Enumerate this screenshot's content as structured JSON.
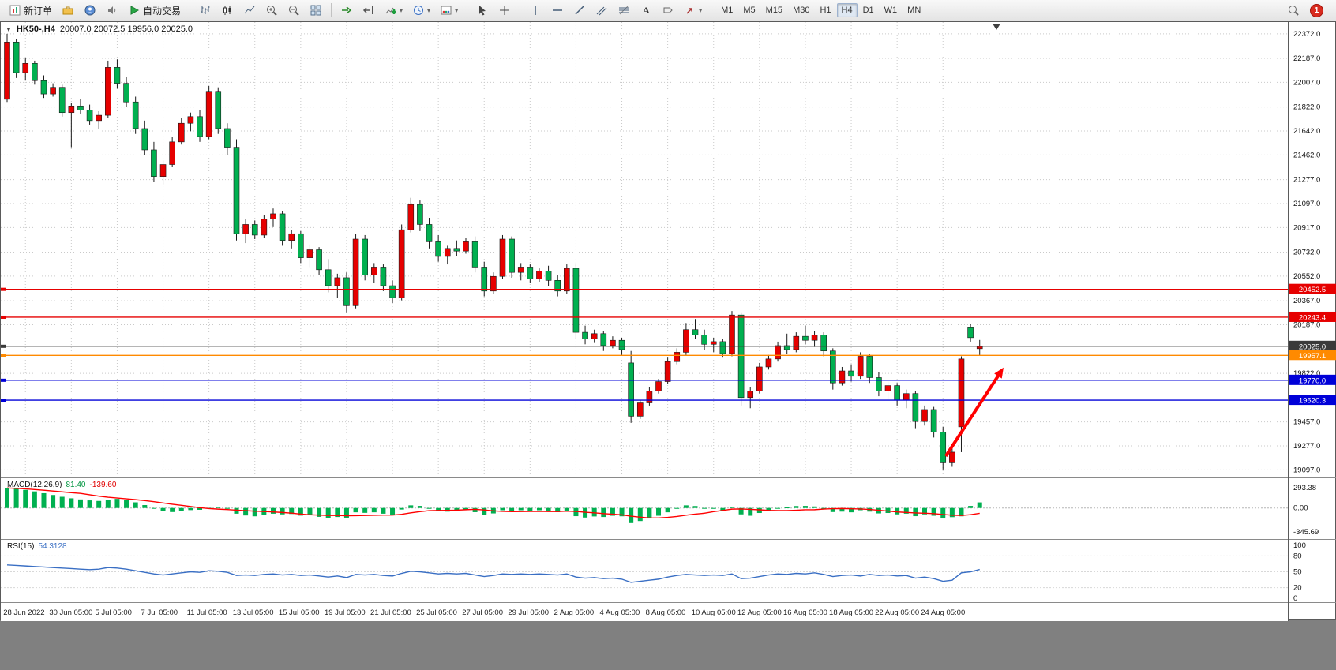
{
  "toolbar": {
    "new_order_label": "新订单",
    "autotrading_label": "自动交易",
    "timeframes": [
      "M1",
      "M5",
      "M15",
      "M30",
      "H1",
      "H4",
      "D1",
      "W1",
      "MN"
    ],
    "active_timeframe": "H4",
    "notification_count": "1"
  },
  "chart": {
    "symbol_period": "HK50-,H4",
    "ohlc_text": "20007.0 20072.5 19956.0 20025.0",
    "price_axis": [
      "22372.0",
      "22187.0",
      "22007.0",
      "21822.0",
      "21642.0",
      "21462.0",
      "21277.0",
      "21097.0",
      "20917.0",
      "20732.0",
      "20552.0",
      "20367.0",
      "20187.0",
      "19822.0",
      "19457.0",
      "19277.0",
      "19097.0"
    ],
    "levels": [
      {
        "label": "20452.5",
        "price": 20452.5,
        "color": "#e60000",
        "width": 1.4
      },
      {
        "label": "20243.4",
        "price": 20243.4,
        "color": "#e60000",
        "width": 1.4
      },
      {
        "label": "20025.0",
        "price": 20025.0,
        "color": "#3a3a3a",
        "width": 1
      },
      {
        "label": "19957.1",
        "price": 19957.1,
        "color": "#ff8a00",
        "width": 1.4
      },
      {
        "label": "19770.0",
        "price": 19770.0,
        "color": "#0000d8",
        "width": 1.4
      },
      {
        "label": "19620.3",
        "price": 19620.3,
        "color": "#0000d8",
        "width": 1.4
      }
    ],
    "time_axis": [
      "28 Jun 2022",
      "30 Jun 05:00",
      "5 Jul 05:00",
      "7 Jul 05:00",
      "11 Jul 05:00",
      "13 Jul 05:00",
      "15 Jul 05:00",
      "19 Jul 05:00",
      "21 Jul 05:00",
      "25 Jul 05:00",
      "27 Jul 05:00",
      "29 Jul 05:00",
      "2 Aug 05:00",
      "4 Aug 05:00",
      "8 Aug 05:00",
      "10 Aug 05:00",
      "12 Aug 05:00",
      "16 Aug 05:00",
      "18 Aug 05:00",
      "22 Aug 05:00",
      "24 Aug 05:00"
    ],
    "arrow": {
      "from": {
        "bar": 102.3,
        "price": 19200
      },
      "to": {
        "bar": 108.6,
        "price": 19865
      },
      "color": "#ff0000"
    },
    "colors": {
      "bull": "#e60000",
      "bear": "#00b050",
      "wick": "#1a1a1a",
      "grid": "#c9c9c9",
      "macd_histogram": "#00b050",
      "macd_signal": "#ff0000",
      "rsi_line": "#3a6fc4"
    }
  },
  "macd": {
    "name": "MACD(12,26,9)",
    "main_value": "81.40",
    "signal_value": "-139.60",
    "scale": [
      "293.38",
      "0.00",
      "-345.69"
    ]
  },
  "rsi": {
    "name": "RSI(15)",
    "value": "54.3128",
    "scale": [
      "100",
      "80",
      "50",
      "20",
      "0"
    ]
  },
  "chart_data": {
    "type": "candlestick",
    "symbol": "HK50-",
    "timeframe": "H4",
    "note": "Chinese color convention: red = up candle, green = down candle",
    "price_range": [
      19040,
      22460
    ],
    "candles": [
      [
        21880,
        22372,
        21860,
        22310
      ],
      [
        22310,
        22330,
        22040,
        22080
      ],
      [
        22080,
        22190,
        22020,
        22150
      ],
      [
        22150,
        22170,
        21990,
        22020
      ],
      [
        22020,
        22060,
        21890,
        21920
      ],
      [
        21920,
        22000,
        21900,
        21970
      ],
      [
        21970,
        21990,
        21750,
        21780
      ],
      [
        21780,
        21850,
        21520,
        21830
      ],
      [
        21830,
        21880,
        21770,
        21800
      ],
      [
        21800,
        21840,
        21690,
        21720
      ],
      [
        21720,
        21790,
        21660,
        21760
      ],
      [
        21760,
        22170,
        21740,
        22120
      ],
      [
        22120,
        22180,
        21960,
        22000
      ],
      [
        22000,
        22050,
        21820,
        21860
      ],
      [
        21860,
        21900,
        21620,
        21660
      ],
      [
        21660,
        21720,
        21460,
        21500
      ],
      [
        21500,
        21560,
        21260,
        21300
      ],
      [
        21300,
        21420,
        21240,
        21390
      ],
      [
        21390,
        21600,
        21370,
        21560
      ],
      [
        21560,
        21740,
        21540,
        21700
      ],
      [
        21700,
        21780,
        21640,
        21750
      ],
      [
        21750,
        21800,
        21560,
        21600
      ],
      [
        21600,
        21980,
        21580,
        21940
      ],
      [
        21940,
        21970,
        21620,
        21660
      ],
      [
        21660,
        21700,
        21460,
        21520
      ],
      [
        21520,
        21580,
        20820,
        20870
      ],
      [
        20870,
        20980,
        20800,
        20940
      ],
      [
        20940,
        20970,
        20830,
        20860
      ],
      [
        20860,
        21010,
        20840,
        20980
      ],
      [
        20980,
        21060,
        20920,
        21020
      ],
      [
        21020,
        21040,
        20780,
        20820
      ],
      [
        20820,
        20900,
        20760,
        20870
      ],
      [
        20870,
        20890,
        20650,
        20690
      ],
      [
        20690,
        20790,
        20620,
        20750
      ],
      [
        20750,
        20770,
        20560,
        20600
      ],
      [
        20600,
        20680,
        20430,
        20480
      ],
      [
        20480,
        20570,
        20390,
        20540
      ],
      [
        20540,
        20580,
        20280,
        20330
      ],
      [
        20330,
        20870,
        20310,
        20830
      ],
      [
        20830,
        20860,
        20520,
        20560
      ],
      [
        20560,
        20650,
        20500,
        20620
      ],
      [
        20620,
        20640,
        20440,
        20480
      ],
      [
        20480,
        20520,
        20350,
        20390
      ],
      [
        20390,
        20940,
        20370,
        20900
      ],
      [
        20900,
        21140,
        20880,
        21090
      ],
      [
        21090,
        21120,
        20890,
        20940
      ],
      [
        20940,
        20990,
        20760,
        20810
      ],
      [
        20810,
        20860,
        20660,
        20700
      ],
      [
        20700,
        20780,
        20640,
        20760
      ],
      [
        20760,
        20820,
        20700,
        20740
      ],
      [
        20740,
        20840,
        20720,
        20810
      ],
      [
        20810,
        20850,
        20580,
        20620
      ],
      [
        20620,
        20660,
        20400,
        20440
      ],
      [
        20440,
        20580,
        20420,
        20550
      ],
      [
        20550,
        20860,
        20530,
        20830
      ],
      [
        20830,
        20850,
        20540,
        20580
      ],
      [
        20580,
        20650,
        20520,
        20620
      ],
      [
        20620,
        20640,
        20500,
        20530
      ],
      [
        20530,
        20610,
        20510,
        20590
      ],
      [
        20590,
        20630,
        20480,
        20520
      ],
      [
        20520,
        20560,
        20400,
        20440
      ],
      [
        20440,
        20640,
        20420,
        20610
      ],
      [
        20610,
        20650,
        20080,
        20130
      ],
      [
        20130,
        20180,
        20040,
        20080
      ],
      [
        20080,
        20150,
        20050,
        20120
      ],
      [
        20120,
        20140,
        19990,
        20030
      ],
      [
        20030,
        20100,
        20010,
        20070
      ],
      [
        20070,
        20090,
        19960,
        20000
      ],
      [
        19900,
        19990,
        19450,
        19500
      ],
      [
        19500,
        19620,
        19480,
        19600
      ],
      [
        19600,
        19720,
        19580,
        19690
      ],
      [
        19690,
        19780,
        19670,
        19760
      ],
      [
        19760,
        19940,
        19740,
        19910
      ],
      [
        19910,
        20010,
        19890,
        19980
      ],
      [
        19980,
        20200,
        19960,
        20150
      ],
      [
        20150,
        20230,
        20080,
        20110
      ],
      [
        20110,
        20150,
        20000,
        20040
      ],
      [
        20040,
        20090,
        19980,
        20060
      ],
      [
        20060,
        20080,
        19940,
        19970
      ],
      [
        19970,
        20290,
        19950,
        20260
      ],
      [
        20260,
        20280,
        19580,
        19640
      ],
      [
        19640,
        19720,
        19560,
        19690
      ],
      [
        19690,
        19900,
        19670,
        19870
      ],
      [
        19870,
        19960,
        19850,
        19930
      ],
      [
        19930,
        20060,
        19910,
        20030
      ],
      [
        20030,
        20120,
        19970,
        20000
      ],
      [
        20000,
        20130,
        19980,
        20100
      ],
      [
        20100,
        20180,
        20040,
        20070
      ],
      [
        20070,
        20140,
        20020,
        20110
      ],
      [
        20110,
        20130,
        19950,
        19990
      ],
      [
        19990,
        20010,
        19700,
        19750
      ],
      [
        19750,
        19870,
        19730,
        19840
      ],
      [
        19840,
        19890,
        19760,
        19800
      ],
      [
        19800,
        19980,
        19780,
        19950
      ],
      [
        19950,
        19970,
        19750,
        19790
      ],
      [
        19790,
        19830,
        19650,
        19690
      ],
      [
        19690,
        19760,
        19630,
        19730
      ],
      [
        19730,
        19750,
        19580,
        19620
      ],
      [
        19620,
        19700,
        19560,
        19670
      ],
      [
        19670,
        19690,
        19410,
        19460
      ],
      [
        19460,
        19580,
        19430,
        19550
      ],
      [
        19550,
        19570,
        19340,
        19380
      ],
      [
        19380,
        19420,
        19100,
        19150
      ],
      [
        19150,
        19260,
        19120,
        19230
      ],
      [
        19420,
        19950,
        19230,
        19930
      ],
      [
        20170,
        20190,
        20060,
        20090
      ],
      [
        20007,
        20072.5,
        19956,
        20025
      ]
    ],
    "macd_range": [
      -345.69,
      293.38
    ],
    "macd_histogram": [
      290,
      278,
      262,
      240,
      214,
      188,
      162,
      140,
      124,
      110,
      102,
      122,
      132,
      112,
      82,
      42,
      0,
      -40,
      -58,
      -48,
      -30,
      -26,
      2,
      12,
      -12,
      -82,
      -108,
      -120,
      -100,
      -82,
      -92,
      -86,
      -110,
      -100,
      -128,
      -148,
      -130,
      -140,
      -62,
      -70,
      -62,
      -82,
      -100,
      -22,
      38,
      30,
      -12,
      -40,
      -52,
      -42,
      -22,
      -60,
      -98,
      -78,
      -32,
      -42,
      -32,
      -40,
      -32,
      -48,
      -60,
      -42,
      -118,
      -138,
      -122,
      -130,
      -112,
      -120,
      -218,
      -188,
      -152,
      -112,
      -62,
      -12,
      38,
      28,
      0,
      -12,
      -32,
      18,
      -92,
      -112,
      -72,
      -32,
      -2,
      8,
      28,
      30,
      22,
      -12,
      -58,
      -52,
      -62,
      -32,
      -52,
      -78,
      -72,
      -92,
      -82,
      -118,
      -92,
      -112,
      -152,
      -132,
      -120,
      30,
      81.4
    ],
    "rsi_values": [
      63,
      62,
      61,
      60,
      59,
      58,
      57,
      56,
      55,
      54,
      55,
      58,
      57,
      55,
      52,
      49,
      46,
      44,
      46,
      48,
      50,
      49,
      52,
      51,
      49,
      43,
      44,
      43,
      45,
      46,
      44,
      45,
      43,
      44,
      42,
      40,
      42,
      39,
      45,
      44,
      45,
      43,
      42,
      47,
      51,
      50,
      48,
      46,
      47,
      46,
      47,
      44,
      41,
      43,
      46,
      45,
      46,
      45,
      46,
      45,
      44,
      46,
      40,
      38,
      39,
      37,
      38,
      36,
      30,
      32,
      34,
      36,
      40,
      43,
      45,
      44,
      43,
      44,
      43,
      46,
      37,
      38,
      41,
      44,
      46,
      45,
      47,
      46,
      48,
      45,
      41,
      43,
      44,
      42,
      45,
      43,
      44,
      42,
      43,
      38,
      40,
      37,
      32,
      34,
      48,
      50,
      54.31
    ]
  }
}
